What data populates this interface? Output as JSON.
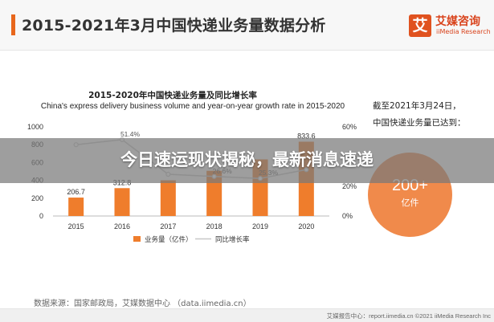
{
  "header": {
    "title": "2015-2021年3月中国快递业务量数据分析"
  },
  "logo": {
    "mark": "艾",
    "name_cn": "艾媒咨询",
    "name_en": "iiMedia Research"
  },
  "chart_data": {
    "type": "bar",
    "title": "2015-2020年中国快递业务量及同比增长率",
    "subtitle": "China's express delivery business volume and year-on-year growth rate in 2015-2020",
    "categories": [
      "2015",
      "2016",
      "2017",
      "2018",
      "2019",
      "2020"
    ],
    "series": [
      {
        "name": "业务量（亿件）",
        "type": "bar",
        "axis": "left",
        "values": [
          206.7,
          312.8,
          400.6,
          507.1,
          635.2,
          833.6
        ],
        "labels": [
          "206.7",
          "312.8",
          "",
          "",
          "",
          "833.6"
        ],
        "color": "#ef7d2c"
      },
      {
        "name": "同比增长率",
        "type": "line",
        "axis": "right",
        "values": [
          48.0,
          51.4,
          28.1,
          26.6,
          25.3,
          31.2
        ],
        "labels": [
          "",
          "51.4%",
          "",
          "26.6%",
          "25.3%",
          ""
        ],
        "color": "#c8c8c8"
      }
    ],
    "ylim": [
      0,
      1000
    ],
    "yticks": [
      0,
      200,
      400,
      600,
      800,
      1000
    ],
    "y2lim": [
      0,
      60
    ],
    "y2ticks": [
      "0%",
      "20%",
      "40%",
      "60%"
    ],
    "legend_position": "bottom",
    "grid": false
  },
  "side_note": {
    "line1": "截至2021年3月24日，",
    "line2": "中国快递业务量已达到：",
    "value": "200+",
    "unit": "亿件"
  },
  "source": "数据来源：国家邮政局，艾媒数据中心 （data.iimedia.cn）",
  "footer": "艾媒报告中心：report.iimedia.cn  ©2021  iiMedia Research  Inc",
  "banner": {
    "text": "今日速运现状揭秘，最新消息速递"
  },
  "colors": {
    "accent": "#e8671c",
    "bar": "#ef7d2c",
    "circle": "#f08a4b"
  }
}
